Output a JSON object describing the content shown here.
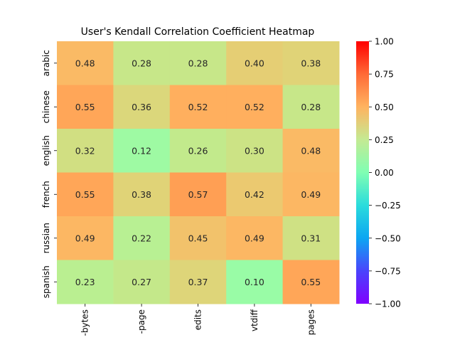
{
  "chart_data": {
    "type": "heatmap",
    "title": "User's Kendall Correlation Coefficient Heatmap",
    "rows": [
      "arabic",
      "chinese",
      "english",
      "french",
      "russian",
      "spanish"
    ],
    "columns": [
      "-bytes",
      "-page",
      "edits",
      "vtdiff",
      "pages"
    ],
    "values": [
      [
        0.48,
        0.28,
        0.28,
        0.4,
        0.38
      ],
      [
        0.55,
        0.36,
        0.52,
        0.52,
        0.28
      ],
      [
        0.32,
        0.12,
        0.26,
        0.3,
        0.48
      ],
      [
        0.55,
        0.38,
        0.57,
        0.42,
        0.49
      ],
      [
        0.49,
        0.22,
        0.45,
        0.49,
        0.31
      ],
      [
        0.23,
        0.27,
        0.37,
        0.1,
        0.55
      ]
    ],
    "colorbar": {
      "colormap": "rainbow",
      "vmin": -1.0,
      "vmax": 1.0,
      "ticks": [
        "1.00",
        "0.75",
        "0.50",
        "0.25",
        "0.00",
        "−0.25",
        "−0.50",
        "−0.75",
        "−1.00"
      ],
      "tick_values": [
        1.0,
        0.75,
        0.5,
        0.25,
        0.0,
        -0.25,
        -0.5,
        -0.75,
        -1.0
      ]
    },
    "legend": "right"
  }
}
